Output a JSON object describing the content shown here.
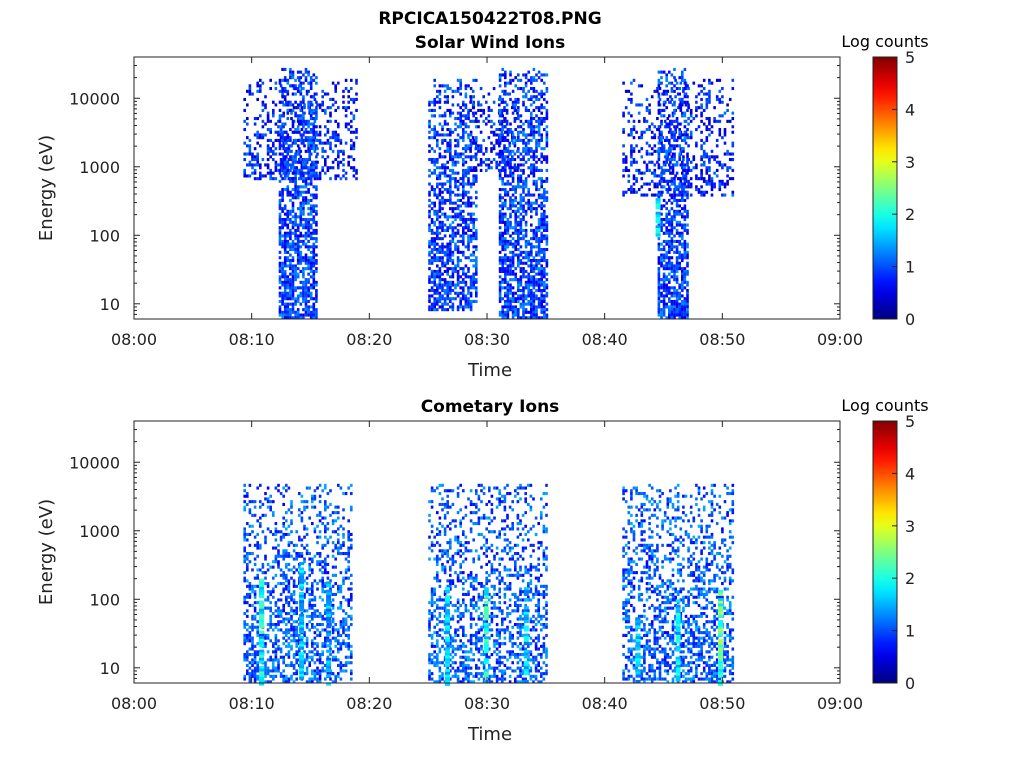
{
  "figure": {
    "title": "RPCICA150422T08.PNG"
  },
  "chart_data": [
    {
      "type": "heatmap",
      "title": "Solar Wind Ions",
      "xlabel": "Time",
      "ylabel": "Energy (eV)",
      "x_ticks": [
        "08:00",
        "08:10",
        "08:20",
        "08:30",
        "08:40",
        "08:50",
        "09:00"
      ],
      "x_range_minutes": [
        0,
        60
      ],
      "y_scale": "log",
      "y_ticks": [
        "10",
        "100",
        "1000",
        "10000"
      ],
      "y_range_eV": [
        6,
        40000
      ],
      "colorbar": {
        "title": "Log counts",
        "range": [
          0,
          5
        ],
        "ticks": [
          "0",
          "1",
          "2",
          "3",
          "4",
          "5"
        ],
        "colormap": "jet"
      },
      "bursts": [
        {
          "start_min": 9.3,
          "end_min": 18.9,
          "lo_eV": 600,
          "hi_eV": 20000,
          "level": 0.3,
          "dens": 0.28
        },
        {
          "start_min": 12.3,
          "end_min": 15.4,
          "lo_eV": 6,
          "hi_eV": 30000,
          "level": 0.45,
          "dens": 0.55
        },
        {
          "start_min": 25.0,
          "end_min": 29.0,
          "lo_eV": 8,
          "hi_eV": 20000,
          "level": 0.45,
          "dens": 0.5
        },
        {
          "start_min": 28.5,
          "end_min": 32.5,
          "lo_eV": 800,
          "hi_eV": 15000,
          "level": 0.3,
          "dens": 0.28
        },
        {
          "start_min": 31.0,
          "end_min": 35.0,
          "lo_eV": 6,
          "hi_eV": 30000,
          "level": 0.45,
          "dens": 0.55
        },
        {
          "start_min": 41.5,
          "end_min": 50.8,
          "lo_eV": 350,
          "hi_eV": 20000,
          "level": 0.3,
          "dens": 0.27
        },
        {
          "start_min": 44.5,
          "end_min": 47.0,
          "lo_eV": 6,
          "hi_eV": 30000,
          "level": 0.45,
          "dens": 0.55
        }
      ],
      "streaks": [
        {
          "time_min": 44.5,
          "lo_eV": 100,
          "hi_eV": 350,
          "level": 1.8
        }
      ]
    },
    {
      "type": "heatmap",
      "title": "Cometary Ions",
      "xlabel": "Time",
      "ylabel": "Energy (eV)",
      "x_ticks": [
        "08:00",
        "08:10",
        "08:20",
        "08:30",
        "08:40",
        "08:50",
        "09:00"
      ],
      "x_range_minutes": [
        0,
        60
      ],
      "y_scale": "log",
      "y_ticks": [
        "10",
        "100",
        "1000",
        "10000"
      ],
      "y_range_eV": [
        6,
        40000
      ],
      "colorbar": {
        "title": "Log counts",
        "range": [
          0,
          5
        ],
        "ticks": [
          "0",
          "1",
          "2",
          "3",
          "4",
          "5"
        ],
        "colormap": "jet"
      },
      "bursts": [
        {
          "start_min": 9.3,
          "end_min": 18.5,
          "lo_eV": 6,
          "hi_eV": 5000,
          "level": 0.6,
          "dens": 0.35
        },
        {
          "start_min": 25.0,
          "end_min": 35.0,
          "lo_eV": 6,
          "hi_eV": 5000,
          "level": 0.6,
          "dens": 0.35
        },
        {
          "start_min": 41.5,
          "end_min": 50.8,
          "lo_eV": 6,
          "hi_eV": 5000,
          "level": 0.6,
          "dens": 0.35
        }
      ],
      "streaks": [
        {
          "time_min": 10.8,
          "lo_eV": 6,
          "hi_eV": 200,
          "level": 1.9
        },
        {
          "time_min": 14.2,
          "lo_eV": 6,
          "hi_eV": 350,
          "level": 1.6
        },
        {
          "time_min": 16.5,
          "lo_eV": 6,
          "hi_eV": 200,
          "level": 1.5
        },
        {
          "time_min": 26.6,
          "lo_eV": 6,
          "hi_eV": 150,
          "level": 1.7
        },
        {
          "time_min": 29.9,
          "lo_eV": 6,
          "hi_eV": 150,
          "level": 2.0
        },
        {
          "time_min": 33.3,
          "lo_eV": 6,
          "hi_eV": 150,
          "level": 1.7
        },
        {
          "time_min": 42.8,
          "lo_eV": 6,
          "hi_eV": 60,
          "level": 1.6
        },
        {
          "time_min": 46.2,
          "lo_eV": 6,
          "hi_eV": 100,
          "level": 1.8
        },
        {
          "time_min": 49.8,
          "lo_eV": 6,
          "hi_eV": 150,
          "level": 2.3
        }
      ]
    }
  ]
}
